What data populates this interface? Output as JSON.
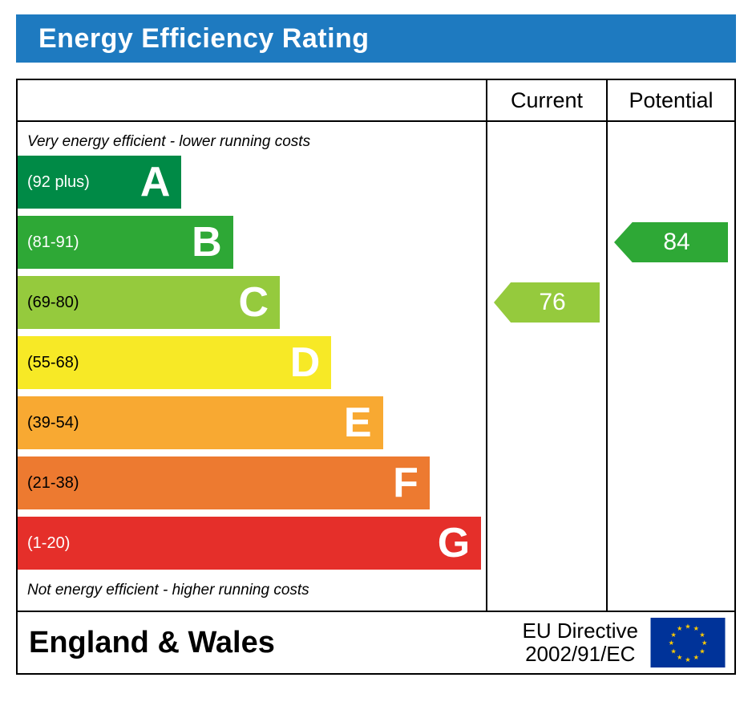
{
  "title": "Energy Efficiency Rating",
  "columns": {
    "current": "Current",
    "potential": "Potential"
  },
  "captions": {
    "top": "Very energy efficient - lower running costs",
    "bottom": "Not energy efficient - higher running costs"
  },
  "bands": [
    {
      "letter": "A",
      "range": "(92 plus)",
      "color": "#008a46",
      "width_pct": 35,
      "range_text_color": "#ffffff"
    },
    {
      "letter": "B",
      "range": "(81-91)",
      "color": "#2ea836",
      "width_pct": 46,
      "range_text_color": "#ffffff"
    },
    {
      "letter": "C",
      "range": "(69-80)",
      "color": "#95ca3d",
      "width_pct": 56,
      "range_text_color": "#000000"
    },
    {
      "letter": "D",
      "range": "(55-68)",
      "color": "#f7e926",
      "width_pct": 67,
      "range_text_color": "#000000"
    },
    {
      "letter": "E",
      "range": "(39-54)",
      "color": "#f8a932",
      "width_pct": 78,
      "range_text_color": "#000000"
    },
    {
      "letter": "F",
      "range": "(21-38)",
      "color": "#ed7a30",
      "width_pct": 88,
      "range_text_color": "#000000"
    },
    {
      "letter": "G",
      "range": "(1-20)",
      "color": "#e52f2a",
      "width_pct": 99,
      "range_text_color": "#ffffff"
    }
  ],
  "ratings": {
    "current": {
      "value": 76,
      "band_index": 2,
      "color": "#95ca3d"
    },
    "potential": {
      "value": 84,
      "band_index": 1,
      "color": "#2ea836"
    }
  },
  "footer": {
    "region": "England & Wales",
    "directive_line1": "EU Directive",
    "directive_line2": "2002/91/EC"
  },
  "colors": {
    "header_bar": "#1e7ac0",
    "eu_flag_blue": "#003399",
    "eu_flag_star": "#ffcc00"
  },
  "chart_data": {
    "type": "bar",
    "title": "Energy Efficiency Rating",
    "categories": [
      "A",
      "B",
      "C",
      "D",
      "E",
      "F",
      "G"
    ],
    "band_ranges": [
      "(92 plus)",
      "(81-91)",
      "(69-80)",
      "(55-68)",
      "(39-54)",
      "(21-38)",
      "(1-20)"
    ],
    "values": [
      35,
      46,
      56,
      67,
      78,
      88,
      99
    ],
    "value_unit": "relative bar width (%)",
    "current_rating": 76,
    "current_band": "C",
    "potential_rating": 84,
    "potential_band": "B",
    "legend_position": "none",
    "grid": false
  }
}
